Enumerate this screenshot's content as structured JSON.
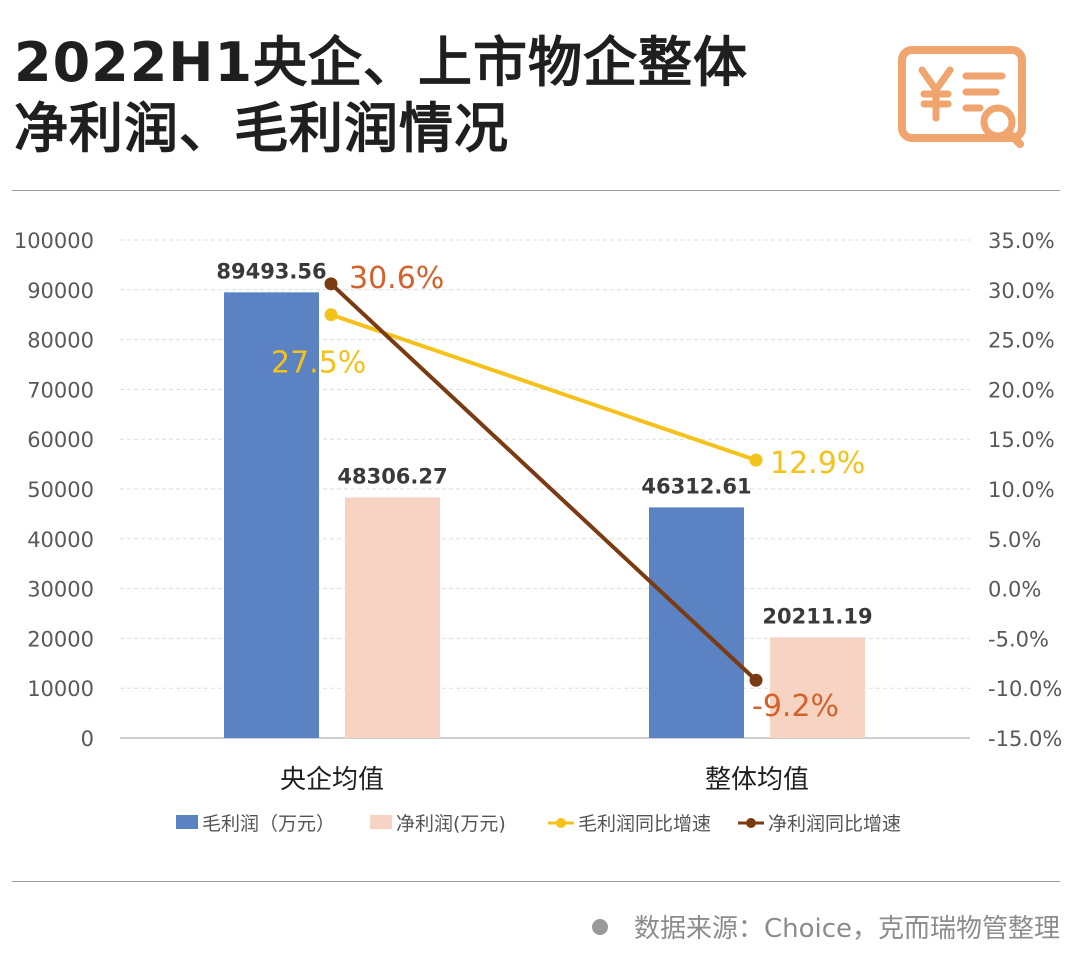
{
  "header": {
    "title_line1": "2022H1央企、上市物企整体",
    "title_line2": "净利润、毛利润情况",
    "logo_icon": "yuan-receipt-search-icon",
    "logo_color": "#F0A46E"
  },
  "footer": {
    "source": "数据来源：Choice，克而瑞物管整理"
  },
  "chart_data": {
    "type": "bar",
    "title": "",
    "categories": [
      "央企均值",
      "整体均值"
    ],
    "y_left": {
      "min": 0,
      "max": 100000,
      "step": 10000,
      "ticks": [
        "0",
        "10000",
        "20000",
        "30000",
        "40000",
        "50000",
        "60000",
        "70000",
        "80000",
        "90000",
        "100000"
      ]
    },
    "y_right": {
      "min": -15,
      "max": 35,
      "step": 5,
      "ticks": [
        "-15.0%",
        "-10.0%",
        "-5.0%",
        "0.0%",
        "5.0%",
        "10.0%",
        "15.0%",
        "20.0%",
        "25.0%",
        "30.0%",
        "35.0%"
      ]
    },
    "grid": true,
    "legend_position": "bottom",
    "series": [
      {
        "name": "毛利润（万元）",
        "type": "bar",
        "axis": "left",
        "color": "#5B82C2",
        "values": [
          89493.56,
          46312.61
        ],
        "labels": [
          "89493.56",
          "46312.61"
        ]
      },
      {
        "name": "净利润(万元)",
        "type": "bar",
        "axis": "left",
        "color": "#F6D3C3",
        "values": [
          48306.27,
          20211.19
        ],
        "labels": [
          "48306.27",
          "20211.19"
        ]
      },
      {
        "name": "毛利润同比增速",
        "type": "line",
        "axis": "right",
        "color": "#F5C21B",
        "values": [
          27.5,
          12.9
        ],
        "labels": [
          "27.5%",
          "12.9%"
        ]
      },
      {
        "name": "净利润同比增速",
        "type": "line",
        "axis": "right",
        "color": "#7A3A12",
        "label_color": "#D2622A",
        "values": [
          30.6,
          -9.2
        ],
        "labels": [
          "30.6%",
          "-9.2%"
        ]
      }
    ]
  }
}
